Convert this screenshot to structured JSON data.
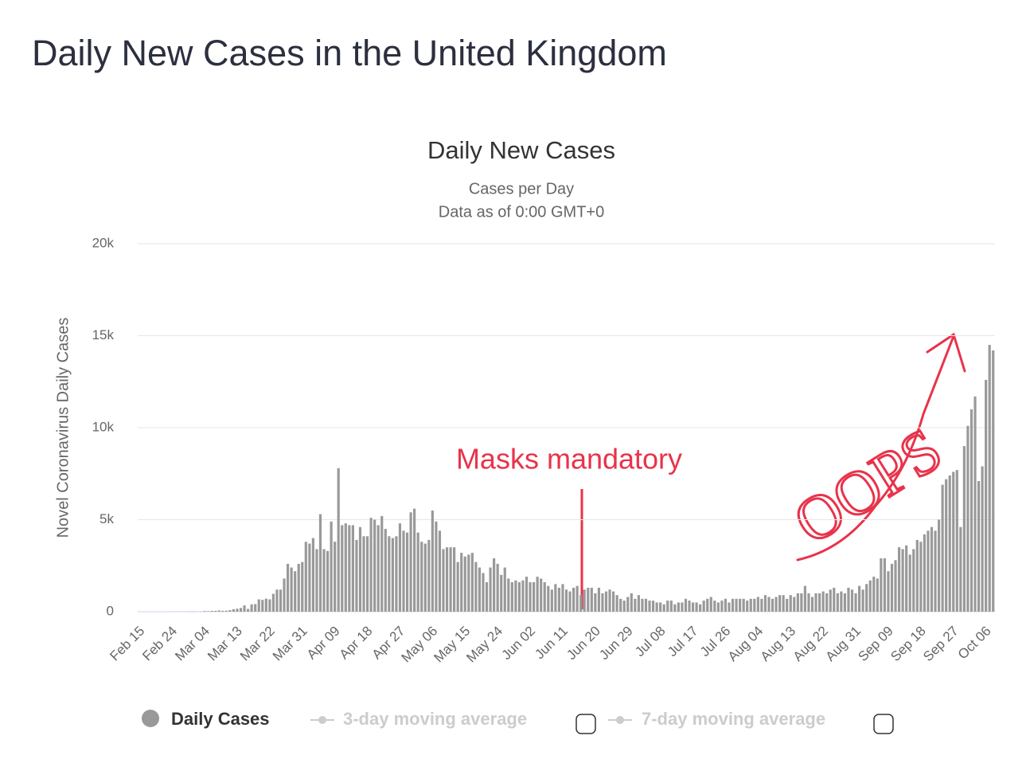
{
  "page_title": "Daily New Cases in the United Kingdom",
  "chart_data": {
    "type": "bar",
    "title": "Daily New Cases",
    "subtitle": [
      "Cases per Day",
      "Data as of 0:00 GMT+0"
    ],
    "y_label": "Novel Coronavirus Daily Cases",
    "categories": [
      "Feb 15",
      null,
      null,
      null,
      null,
      null,
      null,
      null,
      null,
      "Feb 24",
      null,
      null,
      null,
      null,
      null,
      null,
      null,
      null,
      "Mar 04",
      null,
      null,
      null,
      null,
      null,
      null,
      null,
      null,
      "Mar 13",
      null,
      null,
      null,
      null,
      null,
      null,
      null,
      null,
      "Mar 22",
      null,
      null,
      null,
      null,
      null,
      null,
      null,
      null,
      "Mar 31",
      null,
      null,
      null,
      null,
      null,
      null,
      null,
      null,
      "Apr 09",
      null,
      null,
      null,
      null,
      null,
      null,
      null,
      null,
      "Apr 18",
      null,
      null,
      null,
      null,
      null,
      null,
      null,
      null,
      "Apr 27",
      null,
      null,
      null,
      null,
      null,
      null,
      null,
      null,
      "May 06",
      null,
      null,
      null,
      null,
      null,
      null,
      null,
      null,
      "May 15",
      null,
      null,
      null,
      null,
      null,
      null,
      null,
      null,
      "May 24",
      null,
      null,
      null,
      null,
      null,
      null,
      null,
      null,
      "Jun 02",
      null,
      null,
      null,
      null,
      null,
      null,
      null,
      null,
      "Jun 11",
      null,
      null,
      null,
      null,
      null,
      null,
      null,
      null,
      "Jun 20",
      null,
      null,
      null,
      null,
      null,
      null,
      null,
      null,
      "Jun 29",
      null,
      null,
      null,
      null,
      null,
      null,
      null,
      null,
      "Jul 08",
      null,
      null,
      null,
      null,
      null,
      null,
      null,
      null,
      "Jul 17",
      null,
      null,
      null,
      null,
      null,
      null,
      null,
      null,
      "Jul 26",
      null,
      null,
      null,
      null,
      null,
      null,
      null,
      null,
      "Aug 04",
      null,
      null,
      null,
      null,
      null,
      null,
      null,
      null,
      "Aug 13",
      null,
      null,
      null,
      null,
      null,
      null,
      null,
      null,
      "Aug 22",
      null,
      null,
      null,
      null,
      null,
      null,
      null,
      null,
      "Aug 31",
      null,
      null,
      null,
      null,
      null,
      null,
      null,
      null,
      "Sep 09",
      null,
      null,
      null,
      null,
      null,
      null,
      null,
      null,
      "Sep 18",
      null,
      null,
      null,
      null,
      null,
      null,
      null,
      null,
      "Sep 27",
      null,
      null,
      null,
      null,
      null,
      null,
      null,
      null,
      "Oct 06",
      null,
      null
    ],
    "series": [
      {
        "name": "Daily Cases",
        "color": "#999999",
        "values": [
          0,
          0,
          0,
          0,
          0,
          0,
          0,
          0,
          0,
          2,
          5,
          5,
          1,
          8,
          13,
          14,
          6,
          11,
          36,
          29,
          46,
          43,
          67,
          48,
          52,
          83,
          134,
          160,
          200,
          340,
          150,
          400,
          410,
          670,
          640,
          710,
          670,
          970,
          1200,
          1200,
          1800,
          2600,
          2400,
          2200,
          2600,
          2700,
          3800,
          3700,
          4000,
          3400,
          5300,
          3400,
          3300,
          4900,
          3800,
          7800,
          4700,
          4800,
          4700,
          4700,
          3900,
          4600,
          4100,
          4100,
          5100,
          5000,
          4700,
          5200,
          4500,
          4100,
          4000,
          4100,
          4800,
          4400,
          4300,
          5400,
          5600,
          4300,
          3800,
          3700,
          3900,
          5500,
          4900,
          4400,
          3400,
          3500,
          3500,
          3500,
          2700,
          3200,
          3000,
          3100,
          3200,
          2700,
          2400,
          2100,
          1600,
          2400,
          2900,
          2600,
          2000,
          2400,
          1800,
          1600,
          1700,
          1600,
          1700,
          1900,
          1600,
          1600,
          1900,
          1800,
          1600,
          1400,
          1200,
          1500,
          1300,
          1500,
          1200,
          1100,
          1300,
          1400,
          900,
          1200,
          1300,
          1300,
          1000,
          1300,
          1000,
          1100,
          1200,
          1100,
          900,
          700,
          600,
          800,
          1000,
          700,
          900,
          700,
          700,
          600,
          600,
          500,
          500,
          400,
          600,
          600,
          400,
          500,
          500,
          700,
          600,
          500,
          500,
          400,
          600,
          700,
          800,
          600,
          500,
          600,
          700,
          500,
          700,
          700,
          700,
          700,
          600,
          700,
          700,
          800,
          700,
          900,
          800,
          700,
          800,
          900,
          900,
          700,
          900,
          800,
          1000,
          1000,
          1400,
          1000,
          800,
          1000,
          1000,
          1100,
          1000,
          1200,
          1300,
          1000,
          1100,
          1000,
          1300,
          1200,
          1000,
          1400,
          1200,
          1500,
          1700,
          1900,
          1800,
          2900,
          2900,
          2200,
          2600,
          2800,
          3500,
          3400,
          3600,
          3100,
          3400,
          3900,
          3800,
          4200,
          4400,
          4600,
          4400,
          5000,
          6900,
          7200,
          7400,
          7600,
          7700,
          4600,
          9000,
          10100,
          11000,
          11700,
          7100,
          7900,
          12600,
          14500,
          14200
        ]
      }
    ],
    "inactive_legend": [
      "3-day moving average",
      "7-day moving average"
    ],
    "annotations": [
      "Masks mandatory",
      "OOPS"
    ],
    "ylim": [
      0,
      20000
    ],
    "yticks": [
      0,
      {
        "value": 5000,
        "label": "5k"
      },
      {
        "value": 10000,
        "label": "10k"
      },
      {
        "value": 15000,
        "label": "15k"
      },
      {
        "value": 20000,
        "label": "20k"
      }
    ],
    "grid": true
  }
}
